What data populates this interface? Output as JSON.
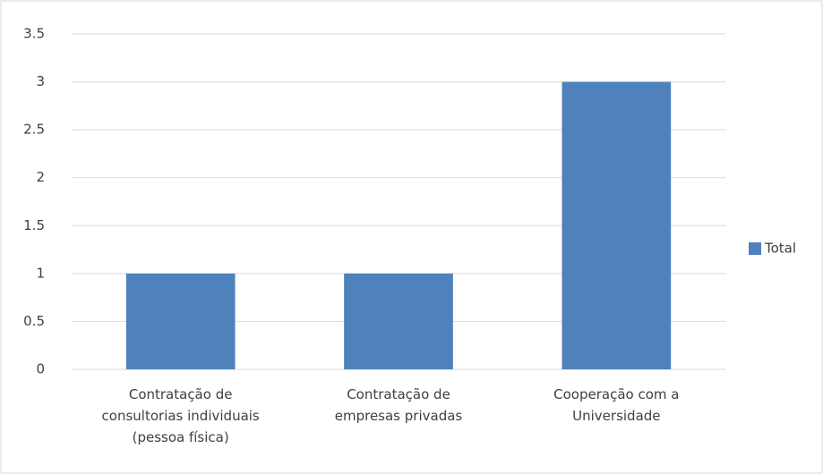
{
  "chart_data": {
    "type": "bar",
    "categories": [
      "Contratação de consultorias individuais (pessoa física)",
      "Contratação de empresas privadas",
      "Cooperação com a Universidade"
    ],
    "series": [
      {
        "name": "Total",
        "color": "#4f81bd",
        "values": [
          1,
          1,
          3
        ]
      }
    ],
    "ylim": [
      0,
      3.5
    ],
    "yticks": [
      0,
      0.5,
      1,
      1.5,
      2,
      2.5,
      3,
      3.5
    ],
    "grid": true,
    "legend": "right"
  }
}
